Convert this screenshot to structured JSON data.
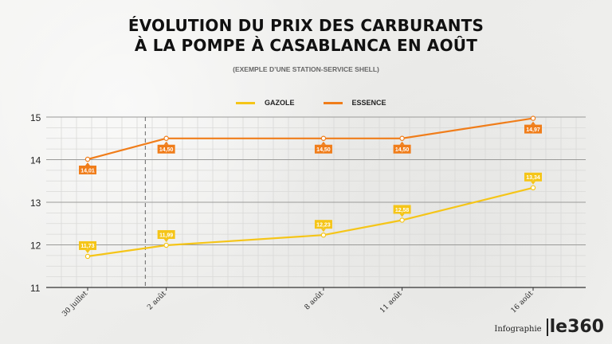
{
  "chart_data": {
    "type": "line",
    "title_line1": "ÉVOLUTION DU PRIX DES CARBURANTS",
    "title_line2": "À LA POMPE À CASABLANCA EN AOÛT",
    "subtitle": "(EXEMPLE D’UNE STATION-SERVICE SHELL)",
    "categories": [
      "30 juillet",
      "2 août",
      "8 août",
      "11 août",
      "16 août"
    ],
    "day_offsets": [
      0,
      3,
      9,
      12,
      17
    ],
    "ylim": [
      11,
      15
    ],
    "yticks": [
      11,
      12,
      13,
      14,
      15
    ],
    "series": [
      {
        "name": "GAZOLE",
        "color": "#f5c518",
        "values": [
          11.73,
          11.99,
          12.23,
          12.58,
          13.34
        ],
        "labels": [
          "11,73",
          "11,99",
          "12,23",
          "12,58",
          "13,34"
        ]
      },
      {
        "name": "ESSENCE",
        "color": "#f07d1a",
        "values": [
          14.01,
          14.5,
          14.5,
          14.5,
          14.97
        ],
        "labels": [
          "14,01",
          "14,50",
          "14,50",
          "14,50",
          "14,97"
        ]
      }
    ],
    "grid": true,
    "legend": "top-center"
  },
  "footer": {
    "label": "Infographie",
    "brand": "le360"
  }
}
